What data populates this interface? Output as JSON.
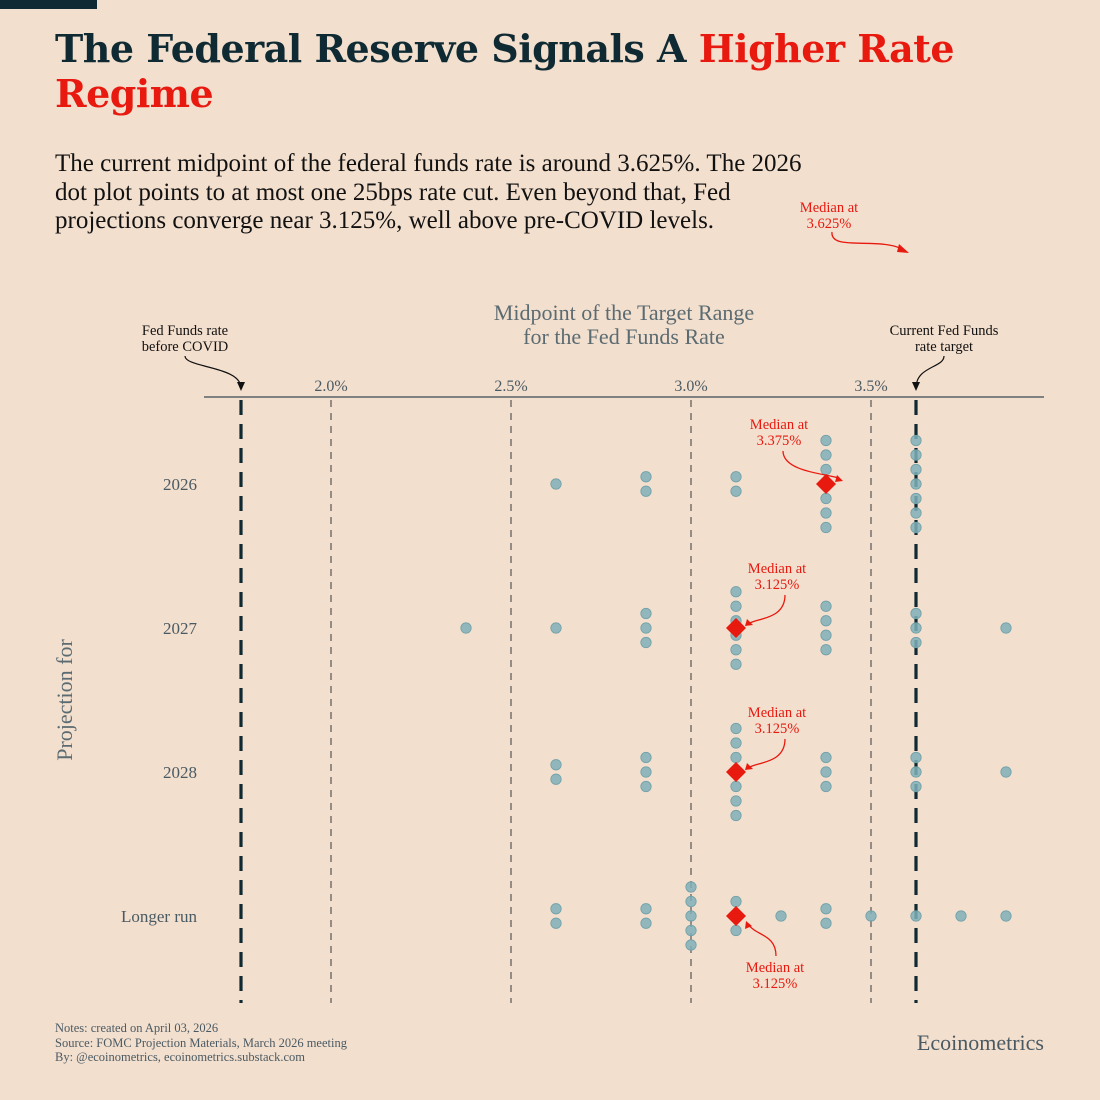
{
  "title": {
    "part1": "The Federal Reserve Signals A ",
    "highlight": "Higher Rate Regime"
  },
  "subtitle": "The current midpoint of the federal funds rate is around 3.625%. The 2026 dot plot points to at most one 25bps rate cut. Even beyond that, Fed projections converge near 3.125%, well above pre-COVID levels.",
  "notes": [
    "Notes: created on April 03, 2026",
    "Source: FOMC Projection Materials, March 2026 meeting",
    "By: @ecoinometrics, ecoinometrics.substack.com"
  ],
  "brand": "Ecoinometrics",
  "colors": {
    "background": "#f3dfce",
    "dark": "#0f2a33",
    "accent": "#e8190f",
    "dot": "#7fb0b8",
    "muted": "#4a5a63"
  },
  "chart_data": {
    "type": "scatter",
    "title": "Midpoint of the Target Range for the Fed Funds Rate",
    "title_lines": [
      "Midpoint of the Target Range",
      "for the Fed Funds Rate"
    ],
    "ylabel": "Projection for",
    "xlim": [
      1.6,
      3.98
    ],
    "xticks": [
      2.0,
      2.5,
      3.0,
      3.5
    ],
    "xtick_labels": [
      "2.0%",
      "2.5%",
      "3.0%",
      "3.5%"
    ],
    "grid": true,
    "reference_lines": [
      {
        "value": 1.75,
        "label_lines": [
          "Fed Funds rate",
          "before COVID"
        ]
      },
      {
        "value": 3.625,
        "label_lines": [
          "Current Fed Funds",
          "rate target"
        ]
      }
    ],
    "top_annotation": [
      "Median at",
      "3.625%"
    ],
    "rows": [
      {
        "label": "2026",
        "median": 3.375,
        "median_label": [
          "Median at",
          "3.375%"
        ],
        "dots": [
          {
            "x": 2.625,
            "n": 1
          },
          {
            "x": 2.875,
            "n": 2
          },
          {
            "x": 3.125,
            "n": 2
          },
          {
            "x": 3.375,
            "n": 7
          },
          {
            "x": 3.625,
            "n": 7
          }
        ]
      },
      {
        "label": "2027",
        "median": 3.125,
        "median_label": [
          "Median at",
          "3.125%"
        ],
        "dots": [
          {
            "x": 2.375,
            "n": 1
          },
          {
            "x": 2.625,
            "n": 1
          },
          {
            "x": 2.875,
            "n": 3
          },
          {
            "x": 3.125,
            "n": 6
          },
          {
            "x": 3.375,
            "n": 4
          },
          {
            "x": 3.625,
            "n": 3
          },
          {
            "x": 3.875,
            "n": 1
          }
        ]
      },
      {
        "label": "2028",
        "median": 3.125,
        "median_label": [
          "Median at",
          "3.125%"
        ],
        "dots": [
          {
            "x": 2.625,
            "n": 2
          },
          {
            "x": 2.875,
            "n": 3
          },
          {
            "x": 3.125,
            "n": 7
          },
          {
            "x": 3.375,
            "n": 3
          },
          {
            "x": 3.625,
            "n": 3
          },
          {
            "x": 3.875,
            "n": 1
          }
        ]
      },
      {
        "label": "Longer run",
        "median": 3.125,
        "median_label": [
          "Median at",
          "3.125%"
        ],
        "dots": [
          {
            "x": 2.625,
            "n": 2
          },
          {
            "x": 2.875,
            "n": 2
          },
          {
            "x": 3.0,
            "n": 5
          },
          {
            "x": 3.125,
            "n": 3
          },
          {
            "x": 3.25,
            "n": 1
          },
          {
            "x": 3.375,
            "n": 2
          },
          {
            "x": 3.5,
            "n": 1
          },
          {
            "x": 3.625,
            "n": 1
          },
          {
            "x": 3.75,
            "n": 1
          },
          {
            "x": 3.875,
            "n": 1
          }
        ]
      }
    ]
  }
}
